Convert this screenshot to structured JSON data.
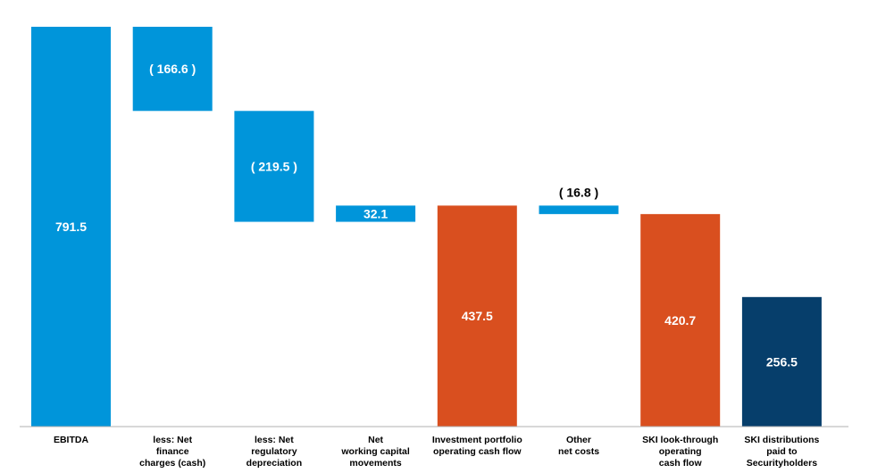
{
  "chart_data": {
    "type": "bar",
    "subtype": "waterfall",
    "categories": [
      "EBITDA",
      "less: Net finance charges (cash)",
      "less: Net regulatory depreciation",
      "Net working capital movements",
      "Investment portfolio operating cash flow",
      "Other net costs",
      "SKI look-through operating cash flow",
      "SKI distributions paid to Securityholders"
    ],
    "category_lines": [
      [
        "EBITDA"
      ],
      [
        "less: Net",
        "finance",
        "charges (cash)"
      ],
      [
        "less: Net",
        "regulatory",
        "depreciation"
      ],
      [
        "Net",
        "working capital",
        "movements"
      ],
      [
        "Investment portfolio",
        "operating cash flow"
      ],
      [
        "Other",
        "net costs"
      ],
      [
        "SKI look-through",
        "operating",
        "cash flow"
      ],
      [
        "SKI distributions",
        "paid to",
        "Securityholders"
      ]
    ],
    "bars": [
      {
        "kind": "total",
        "start": 0,
        "end": 791.5,
        "label": "791.5",
        "color": "#0095DA"
      },
      {
        "kind": "delta",
        "start": 791.5,
        "end": 624.9,
        "label": "( 166.6 )",
        "color": "#0095DA"
      },
      {
        "kind": "delta",
        "start": 624.9,
        "end": 405.4,
        "label": "( 219.5 )",
        "color": "#0095DA"
      },
      {
        "kind": "delta",
        "start": 405.4,
        "end": 437.5,
        "label": "32.1",
        "color": "#0095DA"
      },
      {
        "kind": "total",
        "start": 0,
        "end": 437.5,
        "label": "437.5",
        "color": "#D94F1F"
      },
      {
        "kind": "delta",
        "start": 437.5,
        "end": 420.7,
        "label": "( 16.8 )",
        "color": "#0095DA"
      },
      {
        "kind": "total",
        "start": 0,
        "end": 420.7,
        "label": "420.7",
        "color": "#D94F1F"
      },
      {
        "kind": "total",
        "start": 0,
        "end": 256.5,
        "label": "256.5",
        "color": "#063E6B"
      }
    ],
    "ylim": [
      0,
      791.5
    ],
    "grid": false,
    "title": "",
    "xlabel": "",
    "ylabel": ""
  }
}
